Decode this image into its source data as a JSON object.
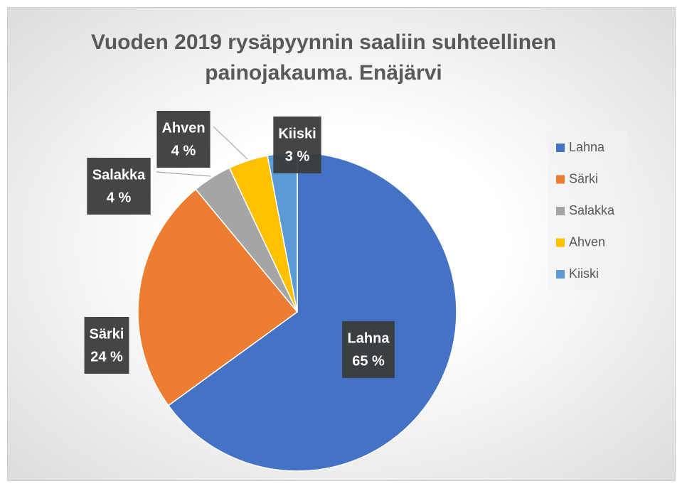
{
  "chart_data": {
    "type": "pie",
    "title": "Vuoden 2019 rysäpyynnin saaliin suhteellinen painojakauma. Enäjärvi",
    "categories": [
      "Lahna",
      "Särki",
      "Salakka",
      "Ahven",
      "Kiiski"
    ],
    "values": [
      65,
      24,
      4,
      4,
      3
    ],
    "value_labels": [
      "65 %",
      "24 %",
      "4 %",
      "4 %",
      "3 %"
    ],
    "colors": [
      "#4472c4",
      "#ed7d31",
      "#a5a5a5",
      "#ffc000",
      "#5b9bd5"
    ],
    "legend": "right"
  }
}
